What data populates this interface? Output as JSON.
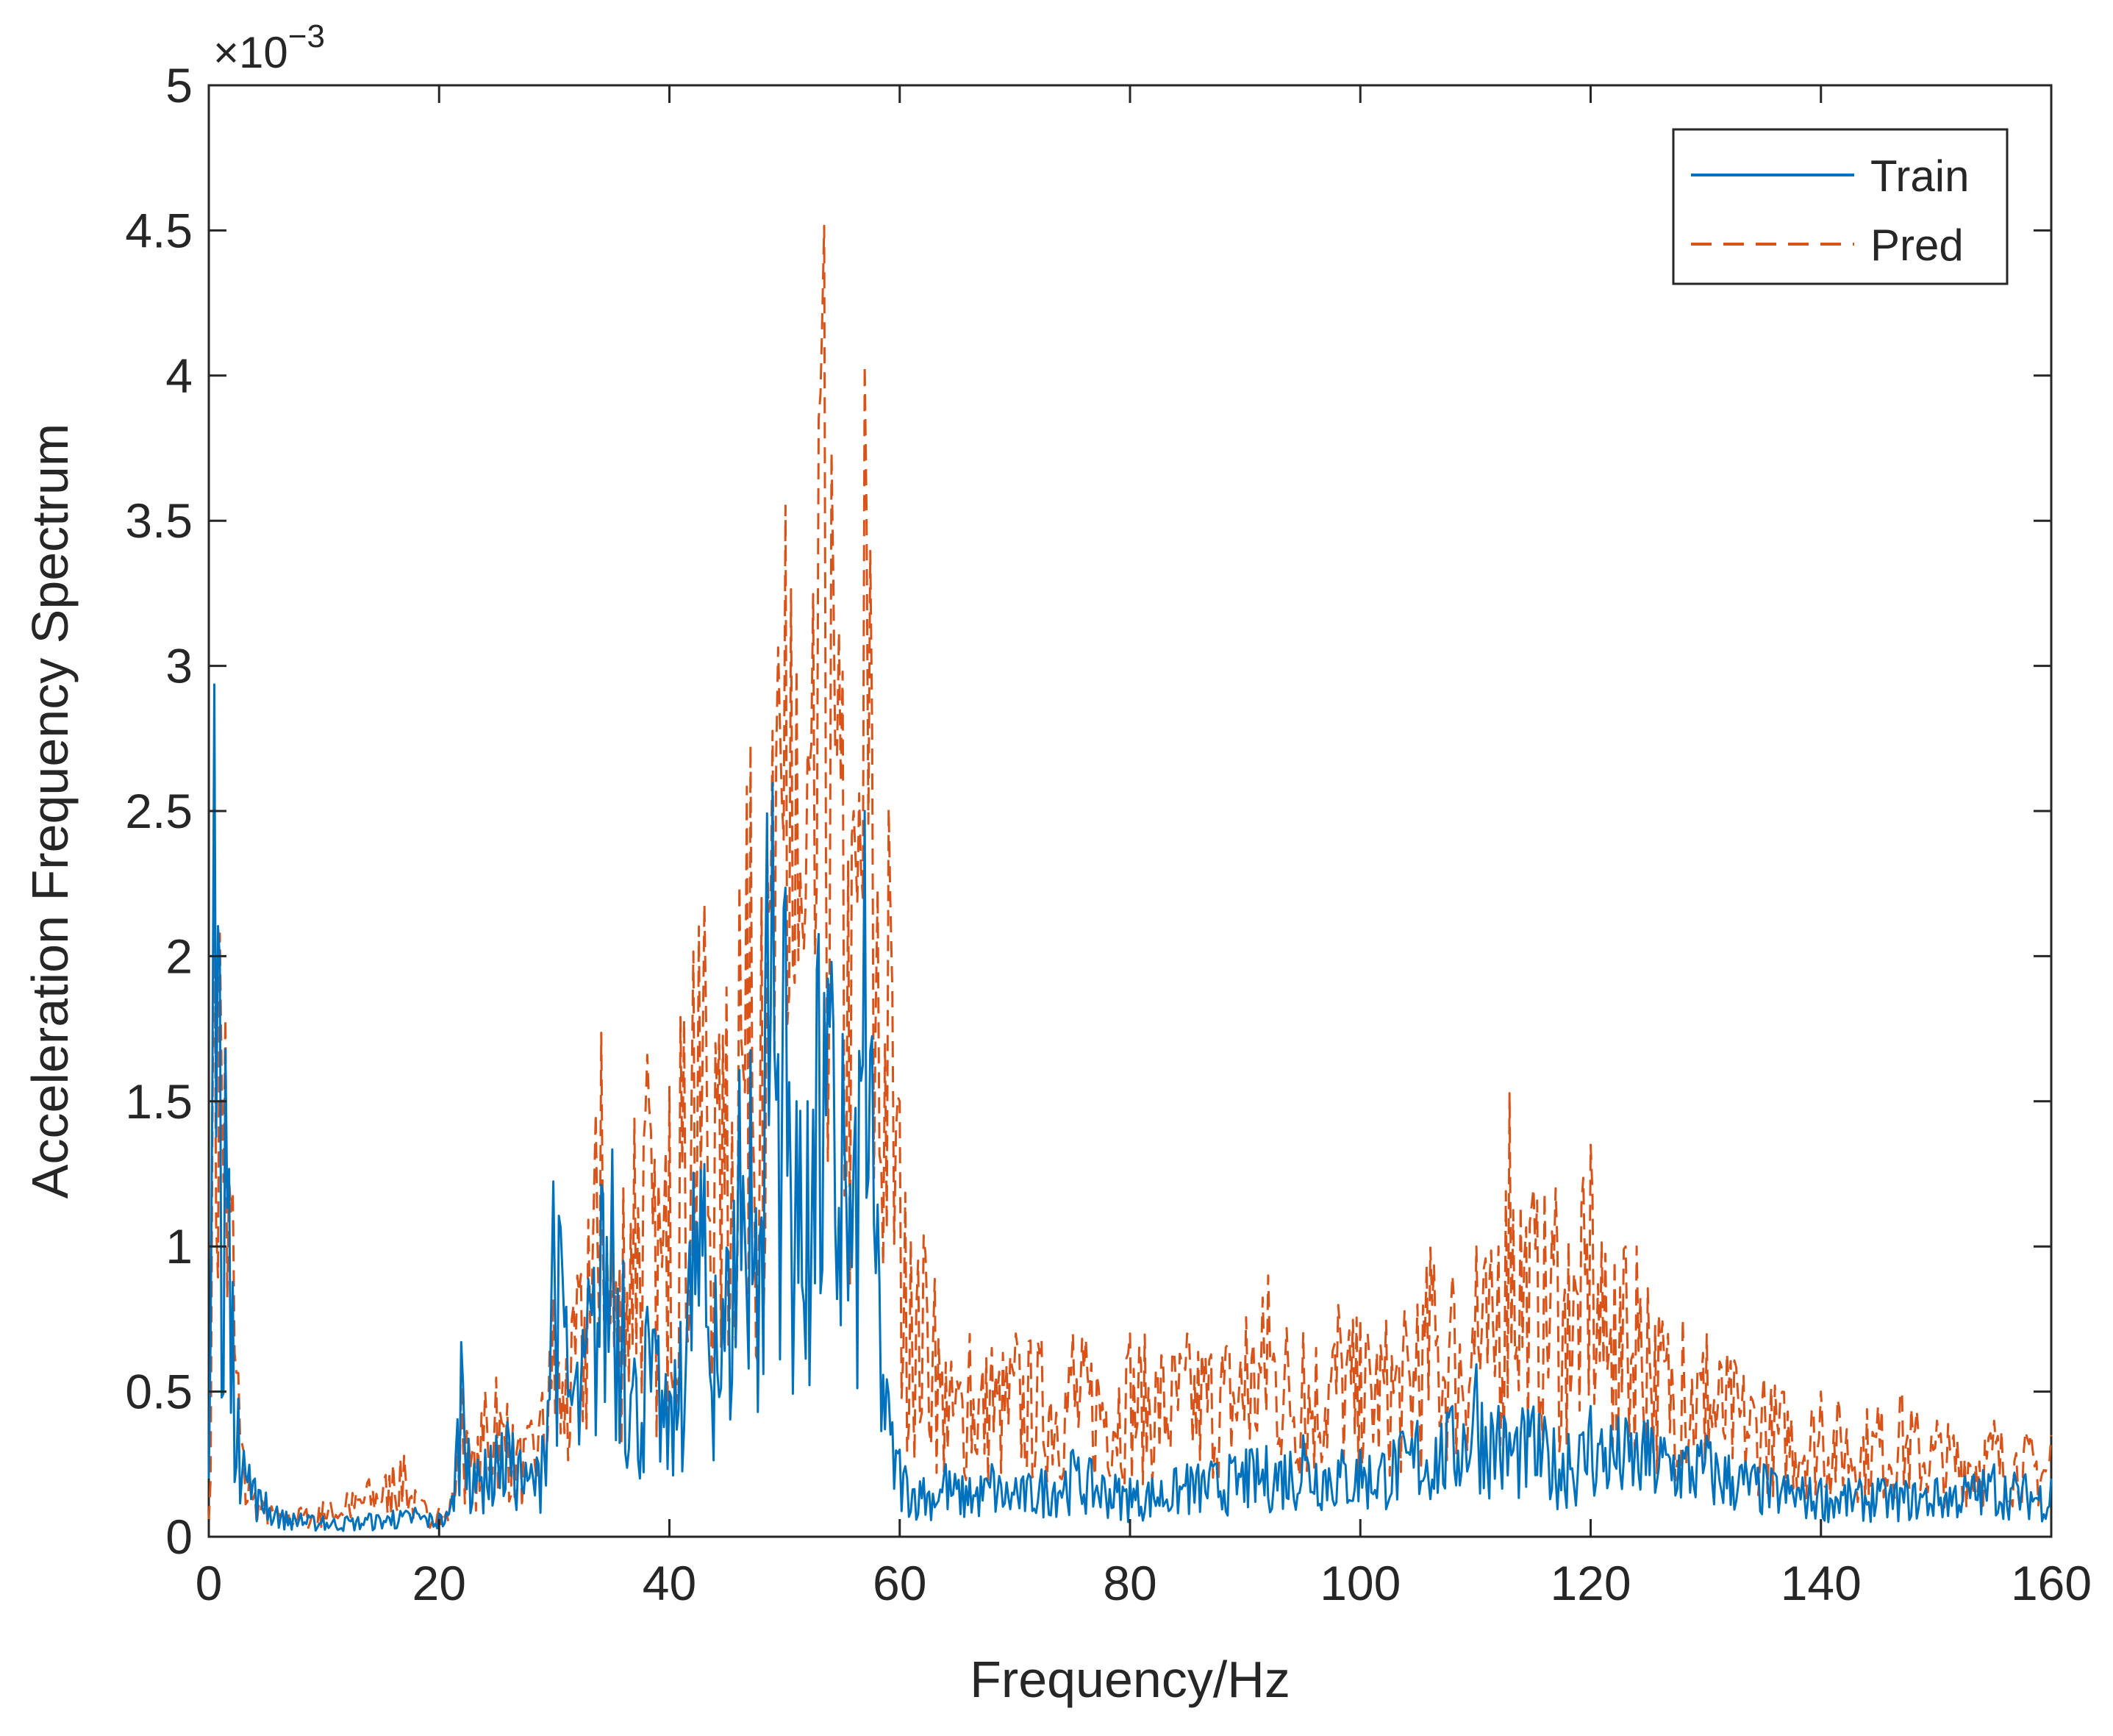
{
  "chart_data": {
    "type": "line",
    "title": "",
    "xlabel": "Frequency/Hz",
    "ylabel": "Acceleration Frequency Spectrum",
    "y_exponent_label": "×10",
    "y_exponent_power": "−3",
    "y_scale": 0.001,
    "xlim": [
      0,
      160
    ],
    "ylim": [
      0,
      5
    ],
    "x_ticks": [
      0,
      20,
      40,
      60,
      80,
      100,
      120,
      140,
      160
    ],
    "x_tick_labels": [
      "0",
      "20",
      "40",
      "60",
      "80",
      "100",
      "120",
      "140",
      "160"
    ],
    "y_ticks": [
      0,
      0.5,
      1,
      1.5,
      2,
      2.5,
      3,
      3.5,
      4,
      4.5,
      5
    ],
    "y_tick_labels": [
      "0",
      "0.5",
      "1",
      "1.5",
      "2",
      "2.5",
      "3",
      "3.5",
      "4",
      "4.5",
      "5"
    ],
    "grid": false,
    "legend_position": "top-right",
    "legend": [
      "Train",
      "Pred"
    ],
    "colors": {
      "train": "#0072BD",
      "pred": "#D95319",
      "axis": "#262626"
    },
    "series": [
      {
        "name": "Train",
        "style": "solid",
        "x": [
          0,
          0.5,
          1,
          1.5,
          2,
          2.5,
          3,
          3.5,
          4,
          5,
          6,
          8,
          10,
          12,
          14,
          16,
          18,
          20,
          21,
          22,
          22.5,
          23,
          24,
          25,
          26,
          27,
          28,
          29,
          30,
          30.5,
          31,
          32,
          33,
          34,
          35,
          36,
          37,
          38,
          39,
          40,
          41,
          42,
          43,
          44,
          45,
          46,
          47,
          48,
          48.5,
          49,
          50,
          51,
          52,
          53,
          54,
          55,
          56,
          57,
          58,
          59,
          60,
          62,
          64,
          66,
          68,
          70,
          75,
          80,
          85,
          90,
          95,
          100,
          105,
          108,
          110,
          112,
          115,
          118,
          120,
          125,
          130,
          135,
          140,
          145,
          150,
          155,
          160
        ],
        "y": [
          0.2,
          3.05,
          1.9,
          1.65,
          0.95,
          0.5,
          0.3,
          0.25,
          0.2,
          0.15,
          0.1,
          0.08,
          0.07,
          0.07,
          0.08,
          0.09,
          0.1,
          0.08,
          0.1,
          0.72,
          0.35,
          0.25,
          0.3,
          0.35,
          0.4,
          0.3,
          0.25,
          0.35,
          1.3,
          1.1,
          0.8,
          0.6,
          0.9,
          1.2,
          1.35,
          0.95,
          0.6,
          0.8,
          0.7,
          0.5,
          0.75,
          1.25,
          1.3,
          0.9,
          1.0,
          1.6,
          1.7,
          1.1,
          2.55,
          2.6,
          2.3,
          1.5,
          1.5,
          2.1,
          2.0,
          1.75,
          1.3,
          2.55,
          1.2,
          0.5,
          0.3,
          0.2,
          0.25,
          0.2,
          0.25,
          0.2,
          0.3,
          0.2,
          0.25,
          0.3,
          0.35,
          0.3,
          0.4,
          0.45,
          0.6,
          0.45,
          0.45,
          0.35,
          0.45,
          0.4,
          0.35,
          0.25,
          0.2,
          0.2,
          0.2,
          0.25,
          0.2
        ]
      },
      {
        "name": "Pred",
        "style": "dashed",
        "x": [
          0,
          0.5,
          1,
          1.5,
          2,
          2.5,
          3,
          3.5,
          4,
          5,
          6,
          8,
          10,
          12,
          14,
          16,
          17,
          18,
          20,
          21,
          22,
          22.5,
          23,
          24,
          25,
          26,
          27,
          28,
          29,
          30,
          31,
          32,
          33,
          34,
          35,
          36,
          37,
          38,
          39,
          40,
          41,
          42,
          43,
          44,
          45,
          46,
          47,
          48,
          49,
          50,
          50.5,
          51,
          52,
          53,
          53.5,
          54,
          55,
          56,
          57,
          57.5,
          58,
          59,
          60,
          61,
          62,
          63,
          64,
          66,
          68,
          70,
          75,
          80,
          85,
          90,
          92,
          95,
          98,
          100,
          105,
          106,
          108,
          110,
          112,
          113,
          115,
          117,
          118,
          120,
          121,
          122,
          123,
          124,
          125,
          128,
          130,
          135,
          140,
          145,
          147,
          150,
          155,
          160
        ],
        "y": [
          0.05,
          2.4,
          2.05,
          1.75,
          1.3,
          0.6,
          0.3,
          0.2,
          0.15,
          0.12,
          0.1,
          0.1,
          0.12,
          0.15,
          0.2,
          0.25,
          0.28,
          0.15,
          0.1,
          0.12,
          0.55,
          0.35,
          0.3,
          0.5,
          0.55,
          0.45,
          0.35,
          0.4,
          0.5,
          0.85,
          0.6,
          0.9,
          1.1,
          1.8,
          1.0,
          1.2,
          1.45,
          1.7,
          1.2,
          1.55,
          1.8,
          2.0,
          2.2,
          1.7,
          1.9,
          2.2,
          2.75,
          2.2,
          2.8,
          3.6,
          3.3,
          3.0,
          2.7,
          3.9,
          4.6,
          3.8,
          3.0,
          2.5,
          4.1,
          3.3,
          2.2,
          2.55,
          1.5,
          1.0,
          1.05,
          0.9,
          0.6,
          0.7,
          0.65,
          0.7,
          0.7,
          0.7,
          0.7,
          0.75,
          0.9,
          0.7,
          0.8,
          0.75,
          0.8,
          1.0,
          0.9,
          1.0,
          1.0,
          1.55,
          1.2,
          1.2,
          1.0,
          1.35,
          1.0,
          0.95,
          1.0,
          1.0,
          0.85,
          0.75,
          0.7,
          0.55,
          0.5,
          0.45,
          0.5,
          0.4,
          0.4,
          0.35
        ]
      }
    ]
  }
}
